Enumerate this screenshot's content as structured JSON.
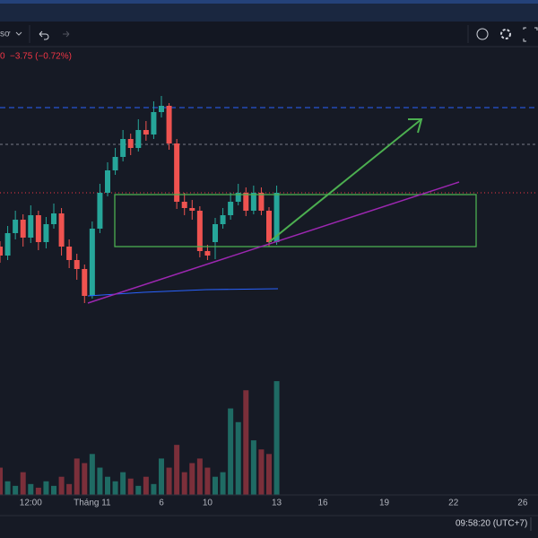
{
  "header": {
    "symbol_fragment": "sơ",
    "price_fragment": "0",
    "change": "−3.75 (−0.72%)"
  },
  "status": {
    "clock": "09:58:20 (UTC+7)"
  },
  "chart_data": {
    "type": "candlestick",
    "x": [
      0,
      1,
      2,
      3,
      4,
      5,
      6,
      7,
      8,
      9,
      10,
      11,
      12,
      13,
      14,
      15,
      16,
      17,
      18,
      19,
      20,
      21,
      22,
      23,
      24,
      25,
      26,
      27,
      28,
      29,
      30,
      31,
      32,
      33,
      34,
      35,
      36
    ],
    "open": [
      515,
      514,
      516.5,
      518,
      516,
      518.5,
      515.5,
      517.5,
      518.7,
      515,
      513.5,
      512.5,
      509.5,
      517,
      521,
      523.5,
      525,
      527,
      526,
      528,
      527.5,
      530,
      530.7,
      526.5,
      520,
      519.3,
      519,
      514.5,
      515.5,
      517.5,
      518.5,
      520,
      521,
      519,
      521,
      519,
      515.5
    ],
    "high": [
      515.6,
      517.3,
      519,
      518.6,
      519.6,
      519,
      518.3,
      519.8,
      519.3,
      515.8,
      514.2,
      513,
      517.8,
      522,
      524.4,
      526,
      528,
      527.6,
      529.2,
      529,
      531.2,
      531.8,
      531,
      527,
      521,
      520.2,
      519.5,
      515.2,
      518.2,
      519.3,
      521,
      522,
      521.6,
      521.8,
      521.6,
      519.4,
      521.8
    ],
    "low": [
      513.2,
      513.5,
      515.8,
      515,
      515.4,
      514.6,
      514.8,
      517,
      514,
      512.6,
      511.3,
      508.7,
      509.2,
      516.5,
      520.6,
      523,
      524.5,
      525.2,
      525.6,
      526.8,
      527,
      529.4,
      525.8,
      519.2,
      518.5,
      518,
      513.8,
      513.5,
      513.6,
      517,
      518,
      519.6,
      518.4,
      518.6,
      518.5,
      515,
      515.2
    ],
    "close": [
      514,
      516.5,
      518,
      516,
      518.5,
      515.5,
      517.5,
      518.7,
      515,
      513.5,
      512.5,
      509.5,
      517,
      521,
      523.5,
      525,
      527,
      526,
      528,
      527.5,
      530,
      530.7,
      526.5,
      520,
      519.3,
      519,
      514.5,
      514,
      517.5,
      518.5,
      520,
      521,
      519,
      521,
      519,
      515.5,
      521
    ],
    "volume": [
      30,
      15,
      10,
      25,
      12,
      8,
      15,
      10,
      20,
      12,
      40,
      35,
      45,
      30,
      20,
      15,
      25,
      18,
      10,
      20,
      12,
      40,
      30,
      55,
      25,
      35,
      40,
      30,
      20,
      25,
      95,
      80,
      115,
      60,
      50,
      45,
      125
    ],
    "xlim": [
      0,
      70
    ],
    "ylim": [
      500.5,
      537.3
    ],
    "volume_lim": [
      0,
      130
    ],
    "xticks": [
      {
        "value": 4,
        "label": "12:00"
      },
      {
        "value": 12,
        "label": "Tháng 11"
      },
      {
        "value": 21,
        "label": "6"
      },
      {
        "value": 27,
        "label": "10"
      },
      {
        "value": 36,
        "label": "13"
      },
      {
        "value": 42,
        "label": "16"
      },
      {
        "value": 50,
        "label": "19"
      },
      {
        "value": 59,
        "label": "22"
      },
      {
        "value": 68,
        "label": "26"
      }
    ],
    "up_color": "#26a69a",
    "down_color": "#ef5350",
    "up_volume_color": "#1f6b64",
    "down_volume_color": "#7b2f3a"
  }
}
